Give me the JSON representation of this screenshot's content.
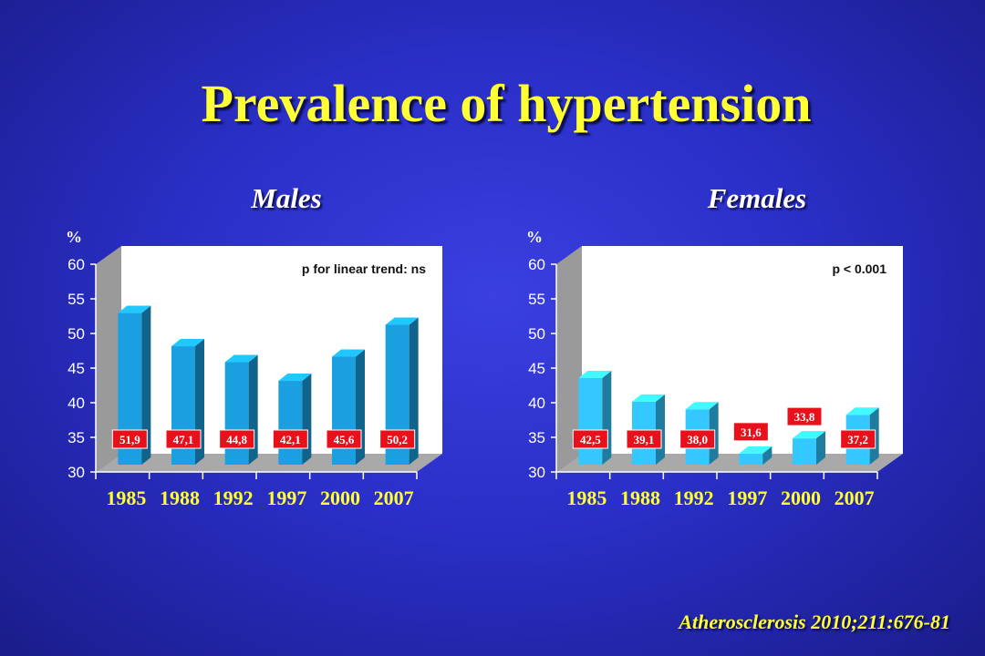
{
  "slide": {
    "title": "Prevalence of hypertension",
    "citation": "Atherosclerosis 2010;211:676-81"
  },
  "colors": {
    "background": "#2a2fc8",
    "title": "#ffff33",
    "bar_male": "#1aa0e0",
    "bar_female": "#33c8ff",
    "label_box": "#e8101a"
  },
  "chart_data": [
    {
      "type": "bar",
      "title": "Males",
      "ylabel": "%",
      "annotation": "p for linear trend: ns",
      "categories": [
        "1985",
        "1988",
        "1992",
        "1997",
        "2000",
        "2007"
      ],
      "values": [
        51.9,
        47.1,
        44.8,
        42.1,
        45.6,
        50.2
      ],
      "value_labels": [
        "51,9",
        "47,1",
        "44,8",
        "42,1",
        "45,6",
        "50,2"
      ],
      "ylim": [
        30,
        60
      ],
      "yticks": [
        "60",
        "55",
        "50",
        "45",
        "40",
        "35",
        "30"
      ],
      "grid": false,
      "style": "3d"
    },
    {
      "type": "bar",
      "title": "Females",
      "ylabel": "%",
      "annotation": "p < 0.001",
      "categories": [
        "1985",
        "1988",
        "1992",
        "1997",
        "2000",
        "2007"
      ],
      "values": [
        42.5,
        39.1,
        38.0,
        31.6,
        33.8,
        37.2
      ],
      "value_labels": [
        "42,5",
        "39,1",
        "38,0",
        "31,6",
        "33,8",
        "37,2"
      ],
      "ylim": [
        30,
        60
      ],
      "yticks": [
        "60",
        "55",
        "50",
        "45",
        "40",
        "35",
        "30"
      ],
      "grid": false,
      "style": "3d"
    }
  ]
}
